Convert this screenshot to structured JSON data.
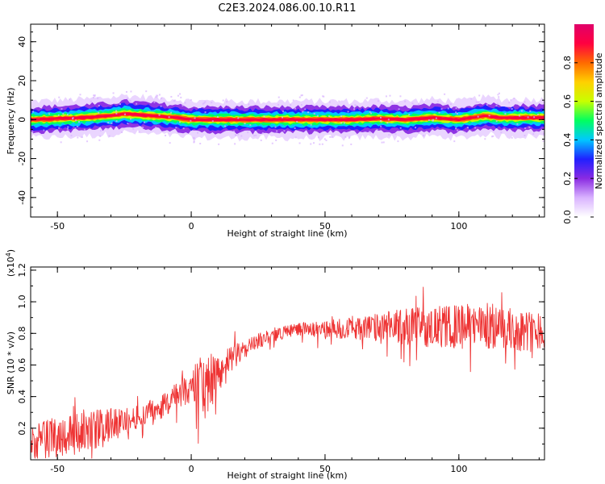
{
  "title": "C2E3.2024.086.00.10.R11",
  "chart_data": [
    {
      "type": "heatmap",
      "xlabel": "Height of straight line (km)",
      "ylabel": "Frequency (Hz)",
      "xlim": [
        -60,
        132
      ],
      "ylim": [
        -50,
        49
      ],
      "xticks": [
        -50,
        0,
        50,
        100
      ],
      "xtick_labels": [
        "-50",
        "0",
        "50",
        "100"
      ],
      "yticks": [
        -40,
        -20,
        0,
        20,
        40
      ],
      "ytick_labels": [
        "-40",
        "-20",
        "0",
        "20",
        "40"
      ],
      "grid": false,
      "ridge": {
        "x": [
          -60,
          -50,
          -40,
          -30,
          -25,
          -20,
          -15,
          -10,
          -5,
          0,
          10,
          20,
          30,
          40,
          50,
          60,
          70,
          80,
          90,
          100,
          105,
          110,
          115,
          120,
          132
        ],
        "y": [
          0,
          0.5,
          1,
          2,
          3,
          2.5,
          2,
          1.5,
          1,
          0,
          0,
          0,
          0,
          0,
          0,
          0,
          0.5,
          0,
          1,
          0,
          1,
          2,
          1,
          1,
          1
        ]
      },
      "colorbar": {
        "label": "Normalized spectral amplitude",
        "range": [
          0,
          1
        ],
        "ticks": [
          0.0,
          0.2,
          0.4,
          0.6,
          0.8
        ],
        "tick_labels": [
          "0.0",
          "0.2",
          "0.4",
          "0.6",
          "0.8"
        ],
        "colors": [
          "#ffffff",
          "#d9b3ff",
          "#8a2be2",
          "#2020ff",
          "#00c8ff",
          "#00ff60",
          "#c8ff00",
          "#ffd000",
          "#ff6a00",
          "#ff0040",
          "#e0006a"
        ]
      }
    },
    {
      "type": "line",
      "xlabel": "Height of straight line (km)",
      "ylabel": "SNR (10 * v/v)",
      "scale_label": "(x10",
      "scale_exp": "4",
      "scale_close": ")",
      "xlim": [
        -60,
        132
      ],
      "ylim": [
        0,
        1.22
      ],
      "xticks": [
        -50,
        0,
        50,
        100
      ],
      "xtick_labels": [
        "-50",
        "0",
        "50",
        "100"
      ],
      "yticks": [
        0.2,
        0.4,
        0.6,
        0.8,
        1.0,
        1.2
      ],
      "ytick_labels": [
        "0.2",
        "0.4",
        "0.6",
        "0.8",
        "1.0",
        "1.2"
      ],
      "grid": false,
      "color": "#ee3333",
      "trend": {
        "x": [
          -60,
          -50,
          -40,
          -30,
          -20,
          -10,
          -5,
          0,
          2,
          5,
          10,
          15,
          20,
          25,
          30,
          40,
          50,
          60,
          70,
          80,
          90,
          100,
          110,
          120,
          132
        ],
        "y": [
          0.1,
          0.15,
          0.18,
          0.22,
          0.27,
          0.35,
          0.4,
          0.46,
          0.5,
          0.45,
          0.55,
          0.64,
          0.7,
          0.75,
          0.79,
          0.83,
          0.82,
          0.84,
          0.83,
          0.85,
          0.84,
          0.84,
          0.85,
          0.82,
          0.82
        ]
      },
      "noise": {
        "x": [
          -60,
          -40,
          -20,
          0,
          5,
          10,
          20,
          40,
          60,
          80,
          90,
          100,
          110,
          132
        ],
        "amp": [
          0.12,
          0.14,
          0.07,
          0.1,
          0.22,
          0.12,
          0.05,
          0.04,
          0.07,
          0.12,
          0.13,
          0.14,
          0.15,
          0.12
        ]
      }
    }
  ]
}
